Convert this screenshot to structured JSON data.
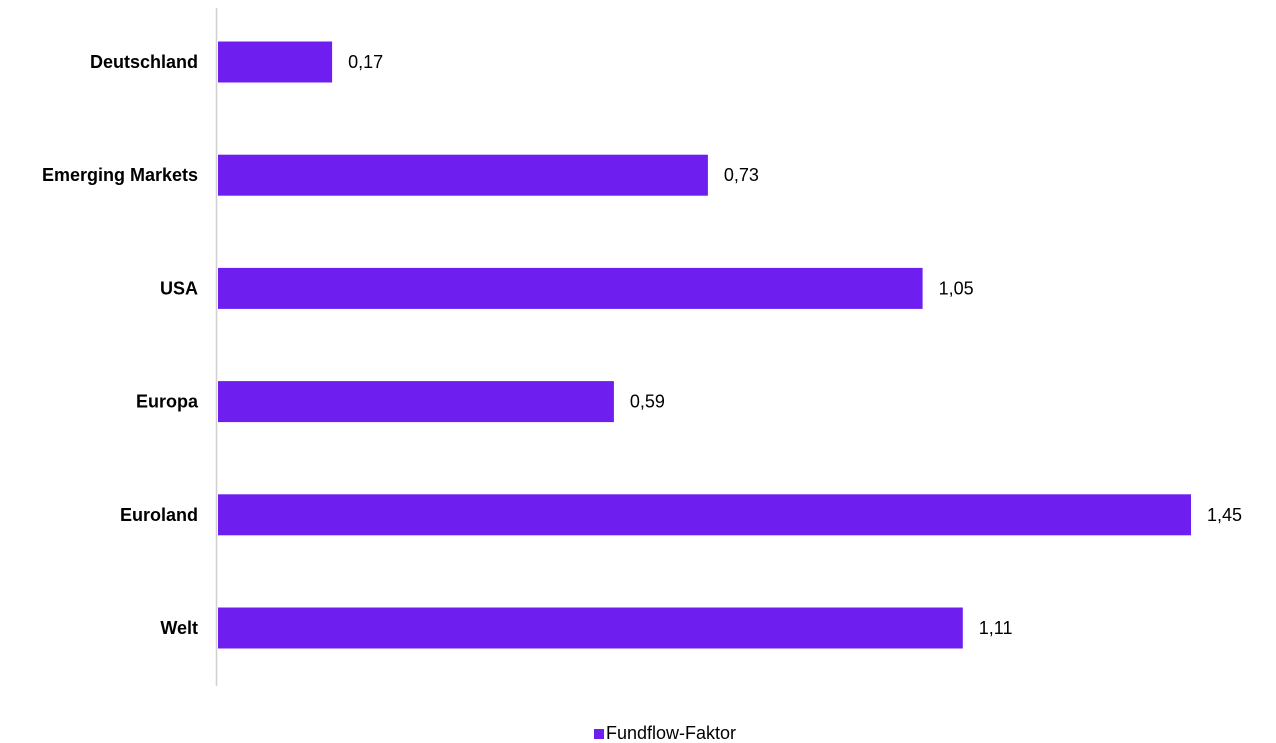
{
  "chart_data": {
    "type": "bar",
    "orientation": "horizontal",
    "categories": [
      "Deutschland",
      "Emerging Markets",
      "USA",
      "Europa",
      "Euroland",
      "Welt"
    ],
    "series": [
      {
        "name": "Fundflow-Faktor",
        "values": [
          0.17,
          0.73,
          1.05,
          0.59,
          1.45,
          1.11
        ],
        "value_labels": [
          "0,17",
          "0,73",
          "1,05",
          "0,59",
          "1,45",
          "1,11"
        ],
        "color": "#6e1ff0"
      }
    ],
    "xlim": [
      0,
      1.45
    ],
    "grid": false,
    "legend": "bottom-center"
  }
}
